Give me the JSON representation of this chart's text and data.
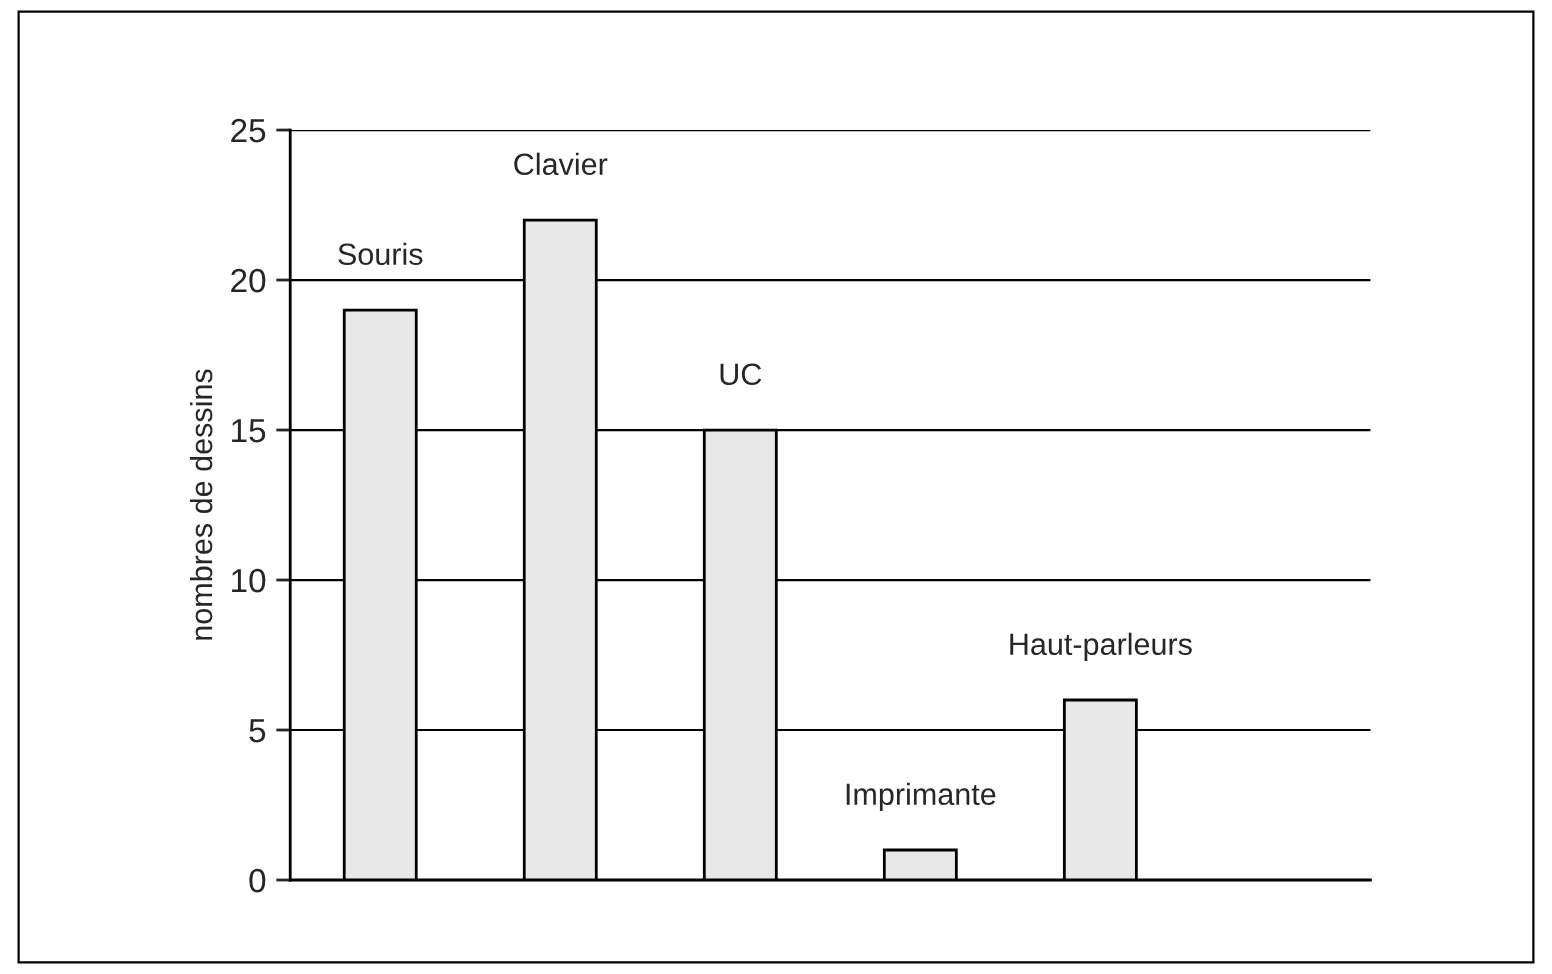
{
  "chart_data": {
    "type": "bar",
    "ylabel": "nombres de dessins",
    "categories": [
      "Souris",
      "Clavier",
      "UC",
      "Imprimante",
      "Haut-parleurs",
      null
    ],
    "values": [
      19,
      22,
      15,
      1,
      6,
      null
    ],
    "color": "#e8e8e8",
    "ylim": [
      0,
      25
    ],
    "yticks": [
      0,
      5,
      10,
      15,
      20,
      25
    ],
    "grid": "y",
    "tick_labels": "y"
  }
}
